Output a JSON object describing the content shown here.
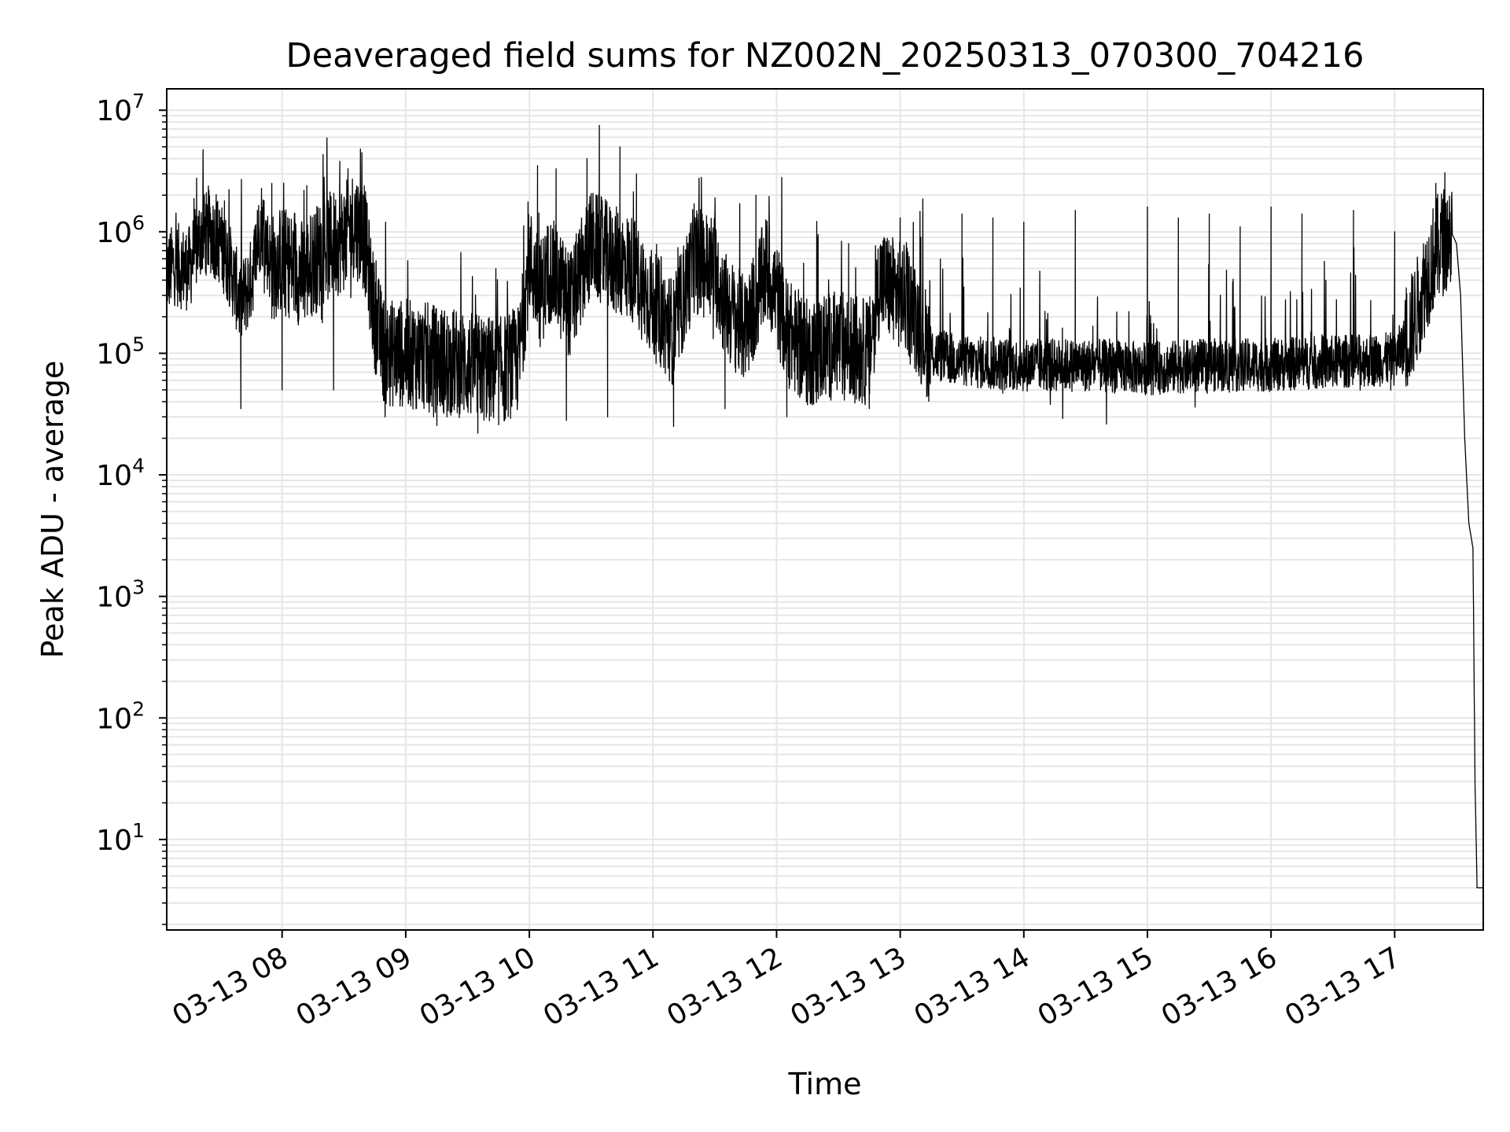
{
  "chart_data": {
    "type": "line",
    "title": "Deaveraged field sums for NZ002N_20250313_070300_704216",
    "xlabel": "Time",
    "ylabel": "Peak ADU - average",
    "yscale": "log",
    "ylim": [
      1.8,
      15000000
    ],
    "xlim": [
      "2025-03-13 07:04",
      "2025-03-13 17:43"
    ],
    "grid": true,
    "y_ticks": [
      {
        "base": "10",
        "exp": "1",
        "value": 10
      },
      {
        "base": "10",
        "exp": "2",
        "value": 100
      },
      {
        "base": "10",
        "exp": "3",
        "value": 1000
      },
      {
        "base": "10",
        "exp": "4",
        "value": 10000
      },
      {
        "base": "10",
        "exp": "5",
        "value": 100000
      },
      {
        "base": "10",
        "exp": "6",
        "value": 1000000
      },
      {
        "base": "10",
        "exp": "7",
        "value": 10000000
      }
    ],
    "x_ticks": [
      {
        "label": "03-13 08",
        "time": "2025-03-13 08:00"
      },
      {
        "label": "03-13 09",
        "time": "2025-03-13 09:00"
      },
      {
        "label": "03-13 10",
        "time": "2025-03-13 10:00"
      },
      {
        "label": "03-13 11",
        "time": "2025-03-13 11:00"
      },
      {
        "label": "03-13 12",
        "time": "2025-03-13 12:00"
      },
      {
        "label": "03-13 13",
        "time": "2025-03-13 13:00"
      },
      {
        "label": "03-13 14",
        "time": "2025-03-13 14:00"
      },
      {
        "label": "03-13 15",
        "time": "2025-03-13 15:00"
      },
      {
        "label": "03-13 16",
        "time": "2025-03-13 16:00"
      },
      {
        "label": "03-13 17",
        "time": "2025-03-13 17:00"
      }
    ],
    "series": [
      {
        "color": "#000000",
        "points": [
          [
            "2025-03-13 07:04",
            450000
          ],
          [
            "2025-03-13 07:08",
            550000
          ],
          [
            "2025-03-13 07:12",
            500000
          ],
          [
            "2025-03-13 07:15",
            500000
          ],
          [
            "2025-03-13 07:20",
            900000
          ],
          [
            "2025-03-13 07:25",
            1000000
          ],
          [
            "2025-03-13 07:30",
            800000
          ],
          [
            "2025-03-13 07:35",
            500000
          ],
          [
            "2025-03-13 07:40",
            250000
          ],
          [
            "2025-03-13 07:45",
            400000
          ],
          [
            "2025-03-13 07:50",
            1200000
          ],
          [
            "2025-03-13 07:55",
            500000
          ],
          [
            "2025-03-13 08:00",
            600000
          ],
          [
            "2025-03-13 08:10",
            450000
          ],
          [
            "2025-03-13 08:20",
            700000
          ],
          [
            "2025-03-13 08:30",
            900000
          ],
          [
            "2025-03-13 08:35",
            1200000
          ],
          [
            "2025-03-13 08:40",
            900000
          ],
          [
            "2025-03-13 08:45",
            200000
          ],
          [
            "2025-03-13 08:50",
            100000
          ],
          [
            "2025-03-13 09:00",
            100000
          ],
          [
            "2025-03-13 09:15",
            90000
          ],
          [
            "2025-03-13 09:30",
            80000
          ],
          [
            "2025-03-13 09:45",
            70000
          ],
          [
            "2025-03-13 09:55",
            90000
          ],
          [
            "2025-03-13 10:00",
            600000
          ],
          [
            "2025-03-13 10:05",
            300000
          ],
          [
            "2025-03-13 10:10",
            500000
          ],
          [
            "2025-03-13 10:20",
            250000
          ],
          [
            "2025-03-13 10:30",
            800000
          ],
          [
            "2025-03-13 10:40",
            600000
          ],
          [
            "2025-03-13 10:50",
            500000
          ],
          [
            "2025-03-13 11:00",
            250000
          ],
          [
            "2025-03-13 11:10",
            150000
          ],
          [
            "2025-03-13 11:15",
            300000
          ],
          [
            "2025-03-13 11:20",
            600000
          ],
          [
            "2025-03-13 11:30",
            500000
          ],
          [
            "2025-03-13 11:35",
            250000
          ],
          [
            "2025-03-13 11:45",
            150000
          ],
          [
            "2025-03-13 11:55",
            500000
          ],
          [
            "2025-03-13 12:00",
            300000
          ],
          [
            "2025-03-13 12:05",
            150000
          ],
          [
            "2025-03-13 12:15",
            100000
          ],
          [
            "2025-03-13 12:30",
            120000
          ],
          [
            "2025-03-13 12:45",
            100000
          ],
          [
            "2025-03-13 12:50",
            400000
          ],
          [
            "2025-03-13 13:00",
            300000
          ],
          [
            "2025-03-13 13:05",
            250000
          ],
          [
            "2025-03-13 13:15",
            100000
          ],
          [
            "2025-03-13 13:30",
            85000
          ],
          [
            "2025-03-13 14:00",
            80000
          ],
          [
            "2025-03-13 14:30",
            80000
          ],
          [
            "2025-03-13 15:00",
            75000
          ],
          [
            "2025-03-13 15:30",
            80000
          ],
          [
            "2025-03-13 16:00",
            80000
          ],
          [
            "2025-03-13 16:30",
            85000
          ],
          [
            "2025-03-13 17:00",
            90000
          ],
          [
            "2025-03-13 17:05",
            120000
          ],
          [
            "2025-03-13 17:10",
            200000
          ],
          [
            "2025-03-13 17:15",
            400000
          ],
          [
            "2025-03-13 17:20",
            700000
          ],
          [
            "2025-03-13 17:25",
            900000
          ],
          [
            "2025-03-13 17:28",
            950000
          ],
          [
            "2025-03-13 17:30",
            800000
          ],
          [
            "2025-03-13 17:32",
            300000
          ],
          [
            "2025-03-13 17:34",
            20000
          ],
          [
            "2025-03-13 17:36",
            4000
          ],
          [
            "2025-03-13 17:38",
            2500
          ],
          [
            "2025-03-13 17:39",
            30
          ],
          [
            "2025-03-13 17:40",
            4
          ],
          [
            "2025-03-13 17:43",
            4
          ]
        ],
        "spikes": [
          [
            "2025-03-13 07:15",
            1100000
          ],
          [
            "2025-03-13 07:32",
            1800000
          ],
          [
            "2025-03-13 07:40",
            35000
          ],
          [
            "2025-03-13 07:48",
            1500000
          ],
          [
            "2025-03-13 07:55",
            2500000
          ],
          [
            "2025-03-13 08:00",
            50000
          ],
          [
            "2025-03-13 08:12",
            2400000
          ],
          [
            "2025-03-13 08:25",
            50000
          ],
          [
            "2025-03-13 08:28",
            3800000
          ],
          [
            "2025-03-13 08:32",
            3300000
          ],
          [
            "2025-03-13 08:38",
            4800000
          ],
          [
            "2025-03-13 08:45",
            100000
          ],
          [
            "2025-03-13 08:50",
            30000
          ],
          [
            "2025-03-13 09:05",
            35000
          ],
          [
            "2025-03-13 09:20",
            30000
          ],
          [
            "2025-03-13 09:35",
            22000
          ],
          [
            "2025-03-13 09:48",
            28000
          ],
          [
            "2025-03-13 10:04",
            3500000
          ],
          [
            "2025-03-13 10:13",
            3300000
          ],
          [
            "2025-03-13 10:18",
            28000
          ],
          [
            "2025-03-13 10:28",
            4000000
          ],
          [
            "2025-03-13 10:34",
            7500000
          ],
          [
            "2025-03-13 10:38",
            30000
          ],
          [
            "2025-03-13 10:44",
            5000000
          ],
          [
            "2025-03-13 10:52",
            3000000
          ],
          [
            "2025-03-13 11:10",
            25000
          ],
          [
            "2025-03-13 11:20",
            1700000
          ],
          [
            "2025-03-13 11:35",
            35000
          ],
          [
            "2025-03-13 11:50",
            2000000
          ],
          [
            "2025-03-13 12:05",
            30000
          ],
          [
            "2025-03-13 12:20",
            900000
          ],
          [
            "2025-03-13 12:35",
            800000
          ],
          [
            "2025-03-13 12:45",
            35000
          ],
          [
            "2025-03-13 13:00",
            1300000
          ],
          [
            "2025-03-13 13:10",
            900000
          ],
          [
            "2025-03-13 13:30",
            1400000
          ],
          [
            "2025-03-13 13:45",
            1300000
          ],
          [
            "2025-03-13 14:00",
            1200000
          ],
          [
            "2025-03-13 14:25",
            1500000
          ],
          [
            "2025-03-13 14:30",
            50000
          ],
          [
            "2025-03-13 15:00",
            1600000
          ],
          [
            "2025-03-13 15:15",
            1300000
          ],
          [
            "2025-03-13 15:30",
            1400000
          ],
          [
            "2025-03-13 15:45",
            1100000
          ],
          [
            "2025-03-13 16:00",
            1600000
          ],
          [
            "2025-03-13 16:15",
            1400000
          ],
          [
            "2025-03-13 16:40",
            1500000
          ],
          [
            "2025-03-13 17:00",
            1000000
          ],
          [
            "2025-03-13 17:20",
            2500000
          ]
        ]
      }
    ]
  }
}
